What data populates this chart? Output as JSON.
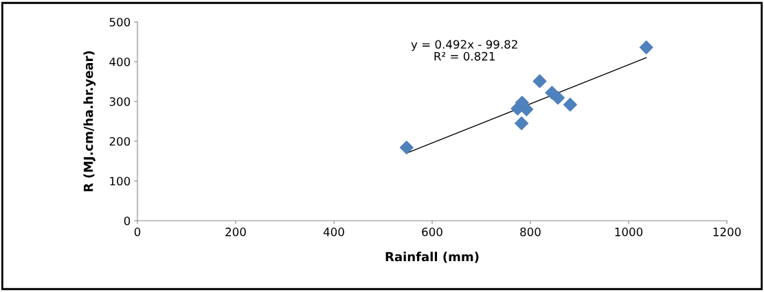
{
  "chart_data": {
    "type": "scatter",
    "xlabel": "Rainfall (mm)",
    "ylabel": "R (MJ.cm/ha.hr.year)",
    "series": [
      {
        "color": "#4f81bd",
        "marker": "diamond",
        "x": [
          548,
          782,
          774,
          783,
          792,
          819,
          844,
          856,
          881,
          1036
        ],
        "values": [
          184,
          245,
          282,
          297,
          280,
          351,
          322,
          309,
          292,
          436
        ]
      },
      {
        "type": "line",
        "color": "#000000",
        "marker": "none",
        "line_style": "solid",
        "x": [
          548,
          1036
        ],
        "values": [
          170,
          410
        ]
      }
    ],
    "annotations": [
      "y = 0.492x - 99.82\nR² = 0.821"
    ],
    "xlim": [
      0,
      1200
    ],
    "xticks": [
      0,
      200,
      400,
      600,
      800,
      1000,
      1200
    ],
    "ylim": [
      0,
      500
    ],
    "yticks": [
      0,
      100,
      200,
      300,
      400,
      500
    ],
    "grid": false,
    "legend": false
  }
}
